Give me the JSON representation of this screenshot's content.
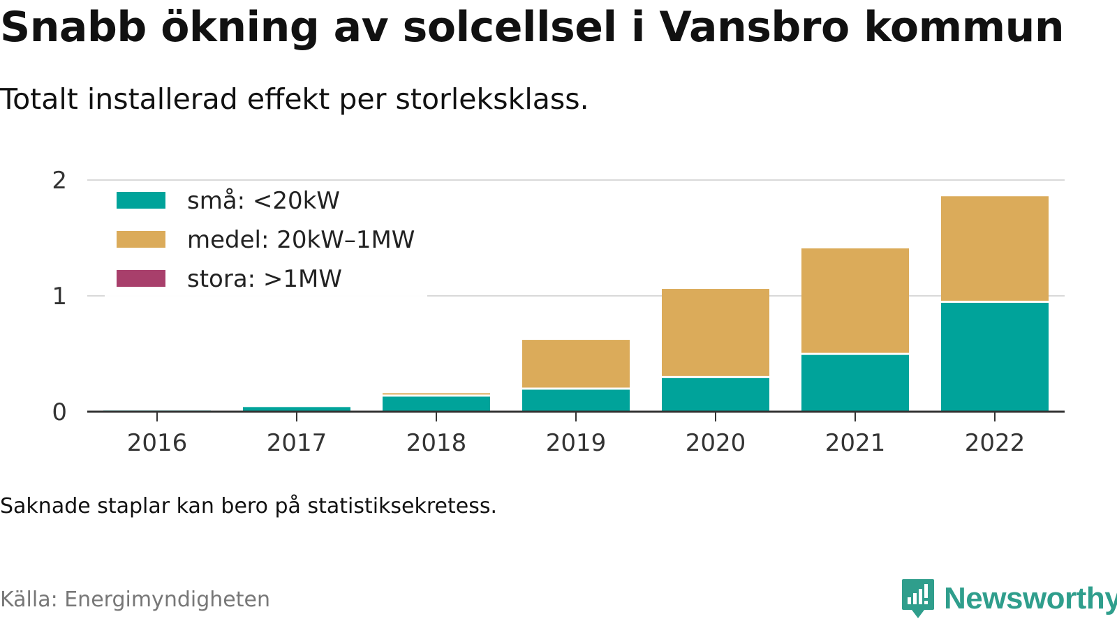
{
  "title": "Snabb ökning av solcellsel i Vansbro kommun",
  "subtitle": "Totalt installerad effekt per storleksklass.",
  "note": "Saknade staplar kan bero på statistiksekretess.",
  "source": "Källa: Energimyndigheten",
  "brand": {
    "name": "Newsworthy",
    "icon": "newsworthy-logo-icon",
    "color": "#2f9e8c"
  },
  "chart_data": {
    "type": "bar",
    "stacked": true,
    "categories": [
      "2016",
      "2017",
      "2018",
      "2019",
      "2020",
      "2021",
      "2022"
    ],
    "series": [
      {
        "name": "små: <20kW",
        "color": "#00a39a",
        "values": [
          0.01,
          0.04,
          0.13,
          0.19,
          0.29,
          0.49,
          0.94
        ]
      },
      {
        "name": "medel: 20kW–1MW",
        "color": "#dbab5a",
        "values": [
          0,
          0,
          0.03,
          0.43,
          0.77,
          0.92,
          0.92
        ]
      },
      {
        "name": "stora: >1MW",
        "color": "#a83f6b",
        "values": [
          0,
          0,
          0,
          0,
          0,
          0,
          0
        ]
      }
    ],
    "yticks": [
      0,
      1,
      2
    ],
    "ylim": [
      0,
      2
    ],
    "grid": true,
    "legend_position": "top-left"
  }
}
